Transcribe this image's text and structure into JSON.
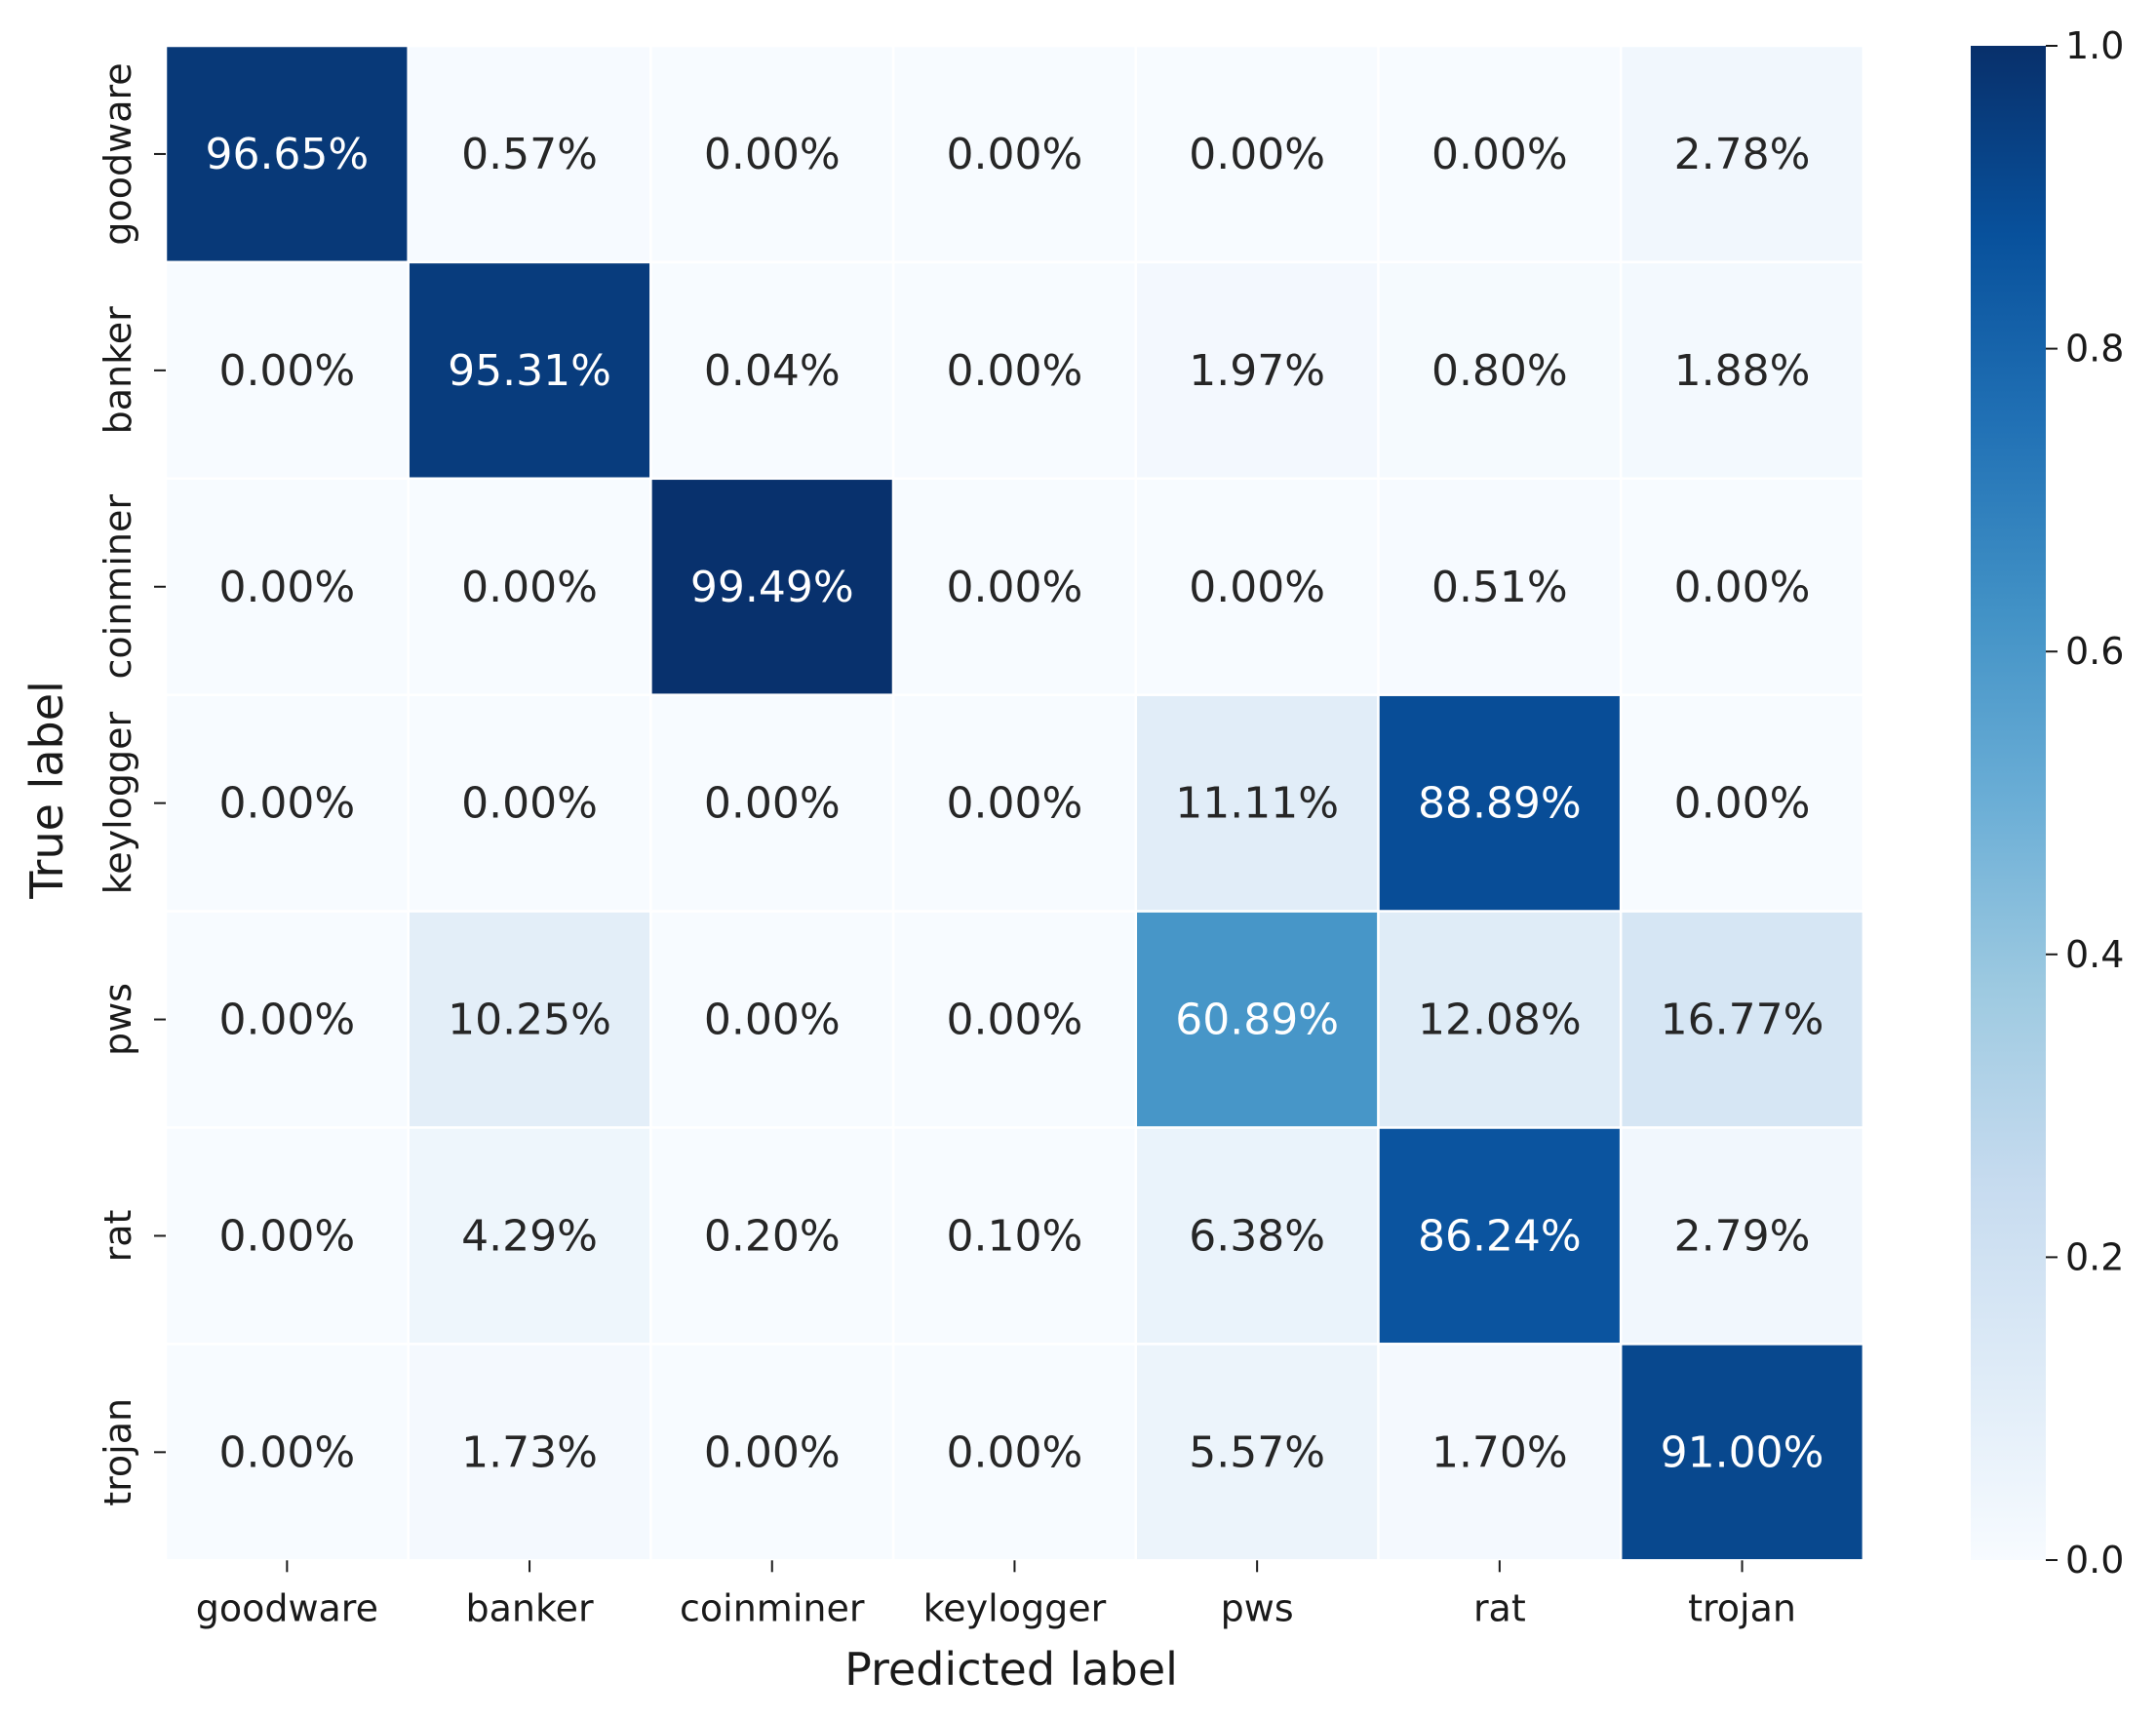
{
  "chart_data": {
    "type": "heatmap",
    "title": "",
    "xlabel": "Predicted label",
    "ylabel": "True label",
    "x_categories": [
      "goodware",
      "banker",
      "coinminer",
      "keylogger",
      "pws",
      "rat",
      "trojan"
    ],
    "y_categories": [
      "goodware",
      "banker",
      "coinminer",
      "keylogger",
      "pws",
      "rat",
      "trojan"
    ],
    "values": [
      [
        0.9665,
        0.0057,
        0.0,
        0.0,
        0.0,
        0.0,
        0.0278
      ],
      [
        0.0,
        0.9531,
        0.0004,
        0.0,
        0.0197,
        0.008,
        0.0188
      ],
      [
        0.0,
        0.0,
        0.9949,
        0.0,
        0.0,
        0.0051,
        0.0
      ],
      [
        0.0,
        0.0,
        0.0,
        0.0,
        0.1111,
        0.8889,
        0.0
      ],
      [
        0.0,
        0.1025,
        0.0,
        0.0,
        0.6089,
        0.1208,
        0.1677
      ],
      [
        0.0,
        0.0429,
        0.002,
        0.001,
        0.0638,
        0.8624,
        0.0279
      ],
      [
        0.0,
        0.0173,
        0.0,
        0.0,
        0.0557,
        0.017,
        0.91
      ]
    ],
    "annotations": [
      [
        "96.65%",
        "0.57%",
        "0.00%",
        "0.00%",
        "0.00%",
        "0.00%",
        "2.78%"
      ],
      [
        "0.00%",
        "95.31%",
        "0.04%",
        "0.00%",
        "1.97%",
        "0.80%",
        "1.88%"
      ],
      [
        "0.00%",
        "0.00%",
        "99.49%",
        "0.00%",
        "0.00%",
        "0.51%",
        "0.00%"
      ],
      [
        "0.00%",
        "0.00%",
        "0.00%",
        "0.00%",
        "11.11%",
        "88.89%",
        "0.00%"
      ],
      [
        "0.00%",
        "10.25%",
        "0.00%",
        "0.00%",
        "60.89%",
        "12.08%",
        "16.77%"
      ],
      [
        "0.00%",
        "4.29%",
        "0.20%",
        "0.10%",
        "6.38%",
        "86.24%",
        "2.79%"
      ],
      [
        "0.00%",
        "1.73%",
        "0.00%",
        "0.00%",
        "5.57%",
        "1.70%",
        "91.00%"
      ]
    ],
    "colorbar": {
      "range": [
        0.0,
        1.0
      ],
      "ticks": [
        0.0,
        0.2,
        0.4,
        0.6,
        0.8,
        1.0
      ],
      "tick_labels": [
        "0.0",
        "0.2",
        "0.4",
        "0.6",
        "0.8",
        "1.0"
      ],
      "colormap": "Blues"
    },
    "grid": true,
    "legend": "colorbar-right"
  }
}
